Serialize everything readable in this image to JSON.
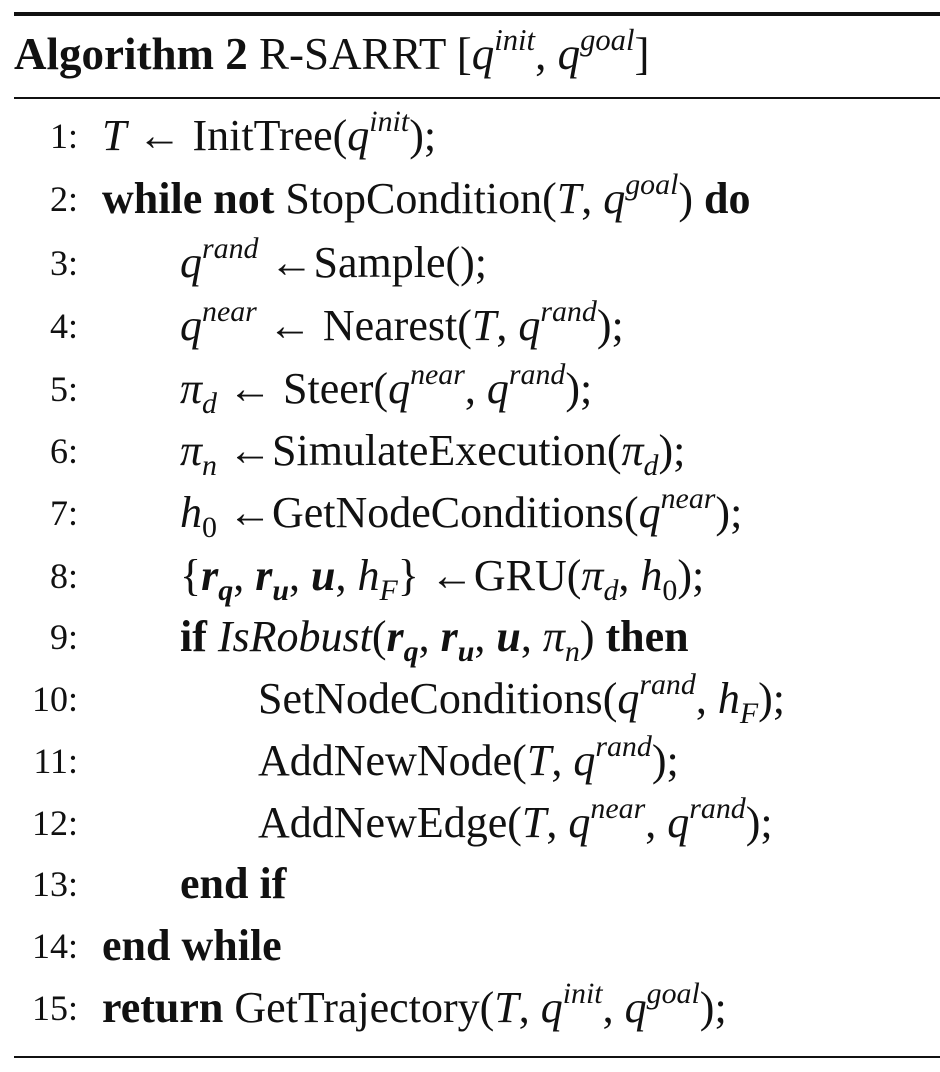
{
  "caption": {
    "label": "Algorithm 2",
    "name": "R-SARRT"
  },
  "fn": {
    "init_tree": "InitTree",
    "stop_condition": "StopCondition",
    "sample": "Sample",
    "nearest": "Nearest",
    "steer": "Steer",
    "simulate_execution": "SimulateExecution",
    "get_node_conditions": "GetNodeConditions",
    "gru": "GRU",
    "is_robust": "IsRobust",
    "set_node_conditions": "SetNodeConditions",
    "add_new_node": "AddNewNode",
    "add_new_edge": "AddNewEdge",
    "get_trajectory": "GetTrajectory"
  },
  "kw": {
    "while": "while",
    "not": "not",
    "do": "do",
    "if": "if",
    "then": "then",
    "end_if": "end if",
    "end_while": "end while",
    "return": "return"
  },
  "sym": {
    "init": "init",
    "goal": "goal",
    "rand": "rand",
    "near": "near",
    "d": "d",
    "n": "n",
    "F": "F",
    "zero": "0"
  },
  "line_numbers": [
    "1:",
    "2:",
    "3:",
    "4:",
    "5:",
    "6:",
    "7:",
    "8:",
    "9:",
    "10:",
    "11:",
    "12:",
    "13:",
    "14:",
    "15:"
  ]
}
